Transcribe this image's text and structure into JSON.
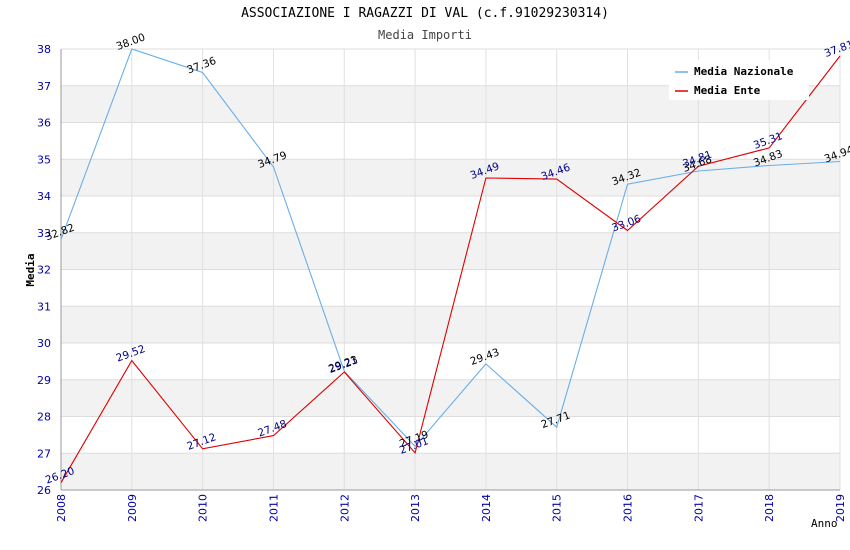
{
  "chart_data": {
    "type": "line",
    "title": "ASSOCIAZIONE I RAGAZZI DI VAL (c.f.91029230314)",
    "subtitle": "Media Importi",
    "xlabel": "Anno",
    "ylabel": "Media",
    "x": [
      "2008",
      "2009",
      "2010",
      "2011",
      "2012",
      "2013",
      "2014",
      "2015",
      "2016",
      "2017",
      "2018",
      "2019"
    ],
    "ylim": [
      26,
      38
    ],
    "yticks": [
      "26",
      "27",
      "28",
      "29",
      "30",
      "31",
      "32",
      "33",
      "34",
      "35",
      "36",
      "37",
      "38"
    ],
    "series": [
      {
        "name": "Media Nazionale",
        "color": "#6aaee8",
        "label_color": "#000000",
        "values": [
          32.82,
          38.0,
          37.36,
          34.79,
          29.23,
          27.19,
          29.43,
          27.71,
          34.32,
          34.68,
          34.83,
          34.94
        ],
        "labels": [
          "32.82",
          "38.00",
          "37.36",
          "34.79",
          "29.23",
          "27.19",
          "29.43",
          "27.71",
          "34.32",
          "34.68",
          "34.83",
          "34.94"
        ]
      },
      {
        "name": "Media Ente",
        "color": "#dd0000",
        "label_color": "#000088",
        "values": [
          26.2,
          29.52,
          27.12,
          27.48,
          29.21,
          27.01,
          34.49,
          34.46,
          33.06,
          34.81,
          35.31,
          37.81
        ],
        "labels": [
          "26.20",
          "29.52",
          "27.12",
          "27.48",
          "29.21",
          "27.01",
          "34.49",
          "34.46",
          "33.06",
          "34.81",
          "35.31",
          "37.81"
        ]
      }
    ],
    "grid": true,
    "legend_position": "top-right"
  }
}
